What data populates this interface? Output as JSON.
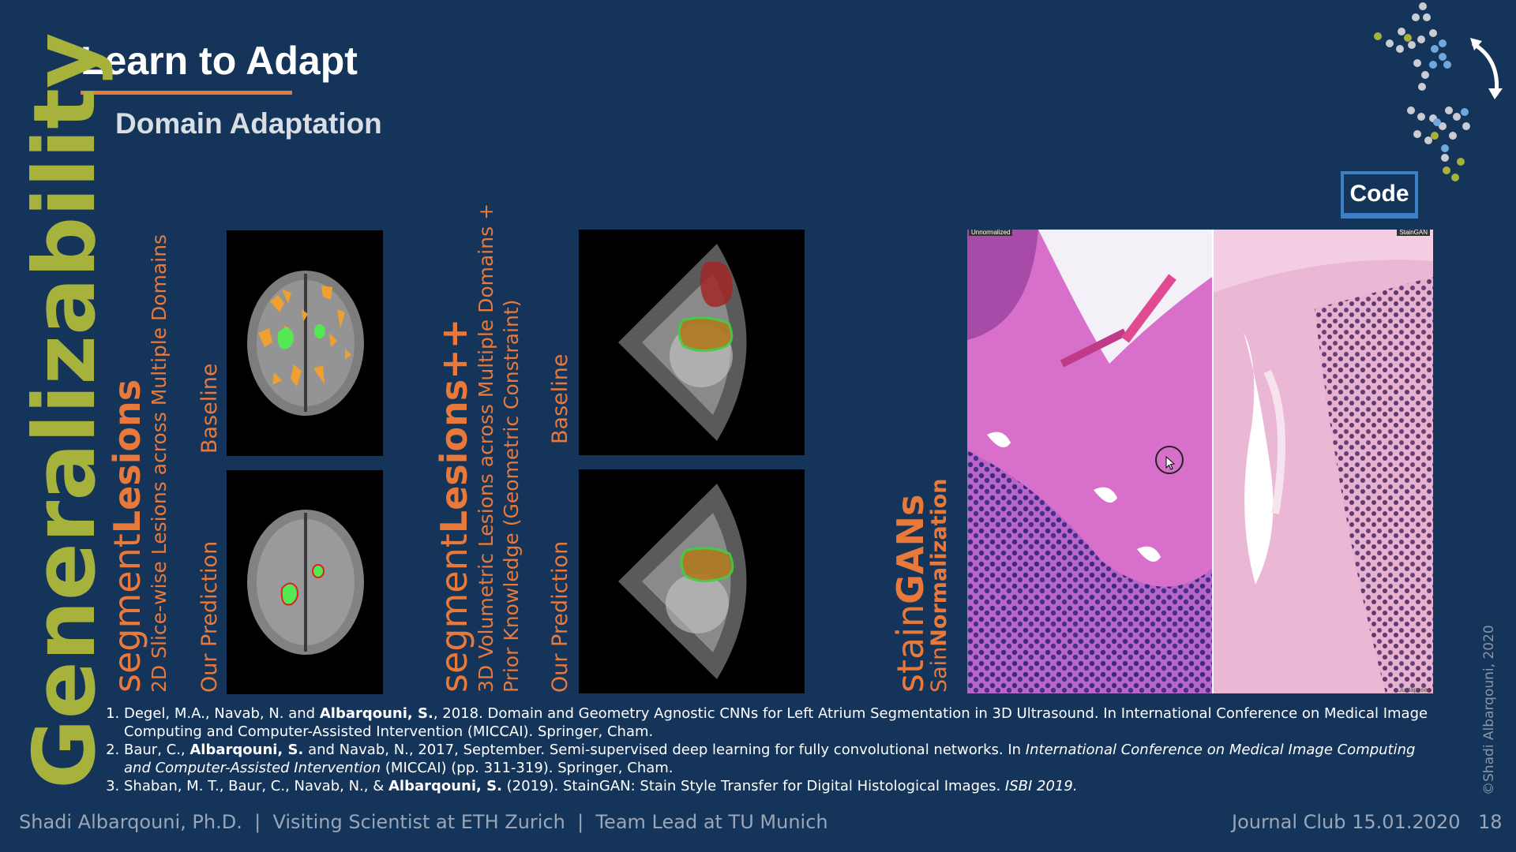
{
  "header": {
    "title": "Learn to Adapt",
    "subtitle": "Domain Adaptation"
  },
  "side_title": "Generalizability",
  "sections": {
    "seg": {
      "heading_prefix": "segment",
      "heading_bold": "Lesions",
      "description": "2D Slice-wise Lesions across Multiple Domains",
      "top_label": "Baseline",
      "bottom_label": "Our Prediction"
    },
    "segpp": {
      "heading_prefix": "segment",
      "heading_bold": "Lesions++",
      "description_line1": "3D Volumetric Lesions across Multiple Domains +",
      "description_line2": "Prior Knowledge (Geometric Constraint)",
      "top_label": "Baseline",
      "bottom_label": "Our Prediction"
    },
    "stain": {
      "heading_prefix": "stain",
      "heading_bold": "GANs",
      "description_prefix": "Sain",
      "description_bold": "Normalization"
    }
  },
  "histology": {
    "left_tag": "Unnormalized",
    "right_tag": "StainGAN",
    "watermark": "Juxtapose"
  },
  "code_button": "Code",
  "references": {
    "r1": {
      "pre": "Degel, M.A., Navab, N. and ",
      "author": "Albarqouni, S.",
      "post": ", 2018. Domain and Geometry Agnostic CNNs for Left Atrium Segmentation in 3D Ultrasound. In International Conference on Medical Image Computing and Computer-Assisted Intervention (MICCAI). Springer, Cham."
    },
    "r2": {
      "pre": "Baur, C., ",
      "author": "Albarqouni, S.",
      "mid": " and Navab, N., 2017, September. Semi-supervised deep learning for fully convolutional networks. In ",
      "venue": "International Conference on Medical Image Computing and Computer-Assisted Intervention",
      "post": " (MICCAI) (pp. 311-319). Springer, Cham."
    },
    "r3": {
      "pre": "Shaban, M. T., Baur, C., Navab, N., & ",
      "author": "Albarqouni, S.",
      "mid": " (2019). StainGAN: Stain Style Transfer for Digital Histological Images. ",
      "venue": "ISBI 2019."
    }
  },
  "footer": {
    "left": "Shadi Albarqouni, Ph.D.  |  Visiting Scientist at ETH Zurich  |  Team Lead at TU Munich",
    "right": "Journal Club 15.01.2020",
    "page": "18",
    "copyright": "©Shadi Albarqouni, 2020"
  },
  "colors": {
    "background": "#14345a",
    "accent_orange": "#e8793a",
    "accent_olive": "#a6b23c",
    "code_border": "#3e7ec4"
  },
  "icons": {
    "logo": "dots-network-logo",
    "arrow": "curved-arrow-icon",
    "cursor": "mouse-cursor-icon"
  }
}
